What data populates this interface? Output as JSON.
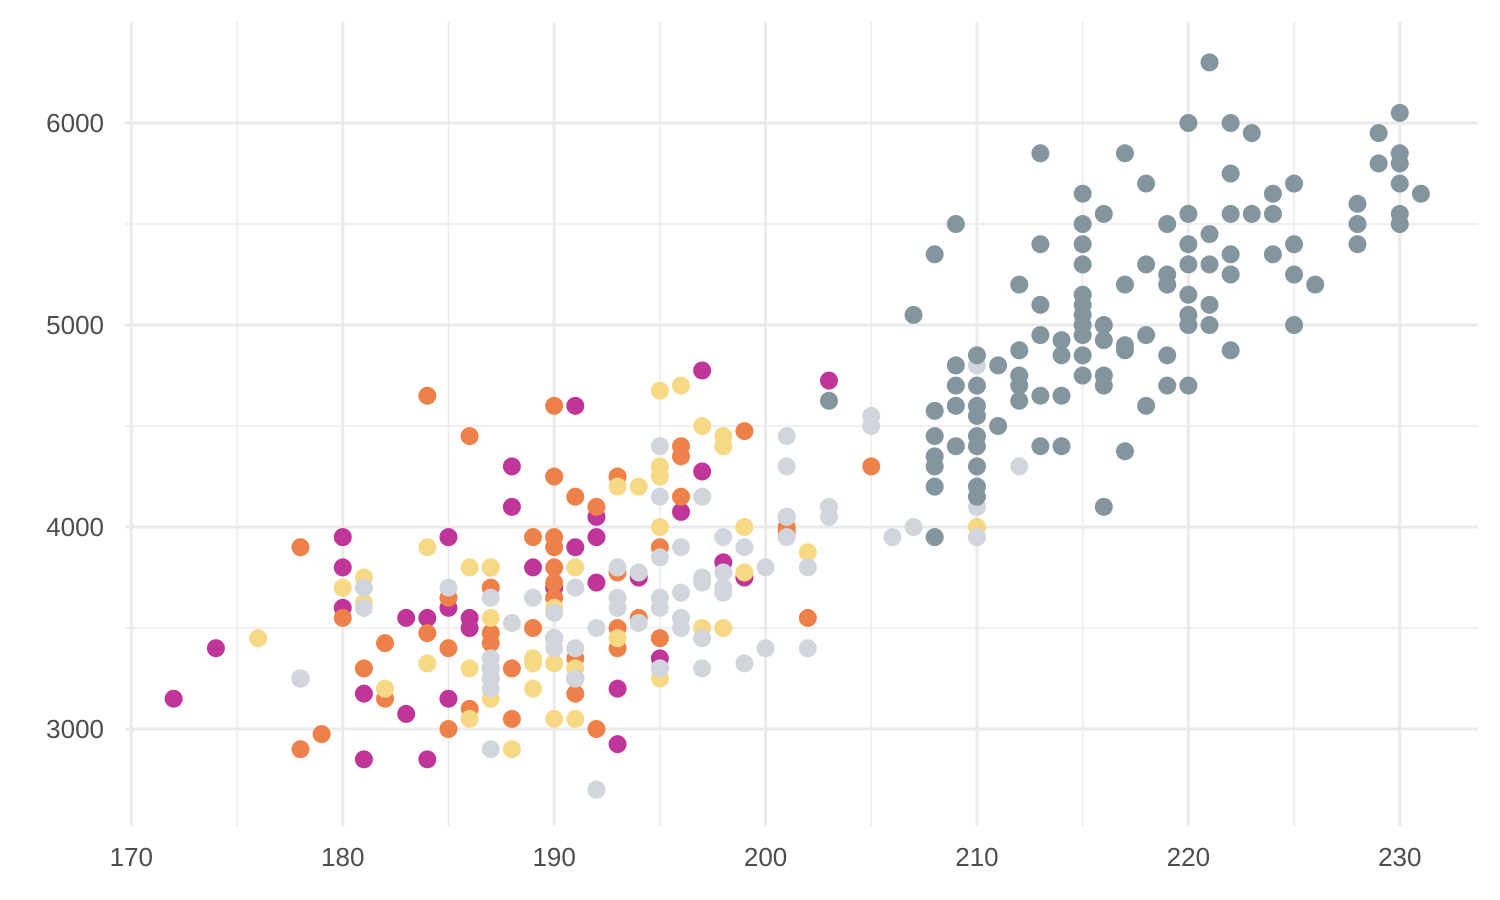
{
  "chart_data": {
    "type": "scatter",
    "title": "",
    "xlabel": "",
    "ylabel": "",
    "xlim": [
      169.7,
      233.7
    ],
    "ylim": [
      2520,
      6500
    ],
    "x_ticks": [
      170,
      180,
      190,
      200,
      210,
      220,
      230
    ],
    "x_tick_labels": [
      "170",
      "180",
      "190",
      "200",
      "210",
      "220",
      "230"
    ],
    "x_minor_ticks": [
      175,
      185,
      195,
      205,
      215,
      225
    ],
    "y_ticks": [
      3000,
      4000,
      5000,
      6000
    ],
    "y_tick_labels": [
      "3000",
      "4000",
      "5000",
      "6000"
    ],
    "y_minor_ticks": [
      3500,
      4500,
      5500
    ],
    "grid": true,
    "legend": "none",
    "series": [
      {
        "color": "#C0359A",
        "points": [
          [
            172,
            3150
          ],
          [
            174,
            3400
          ],
          [
            178,
            3250
          ],
          [
            180,
            3950
          ],
          [
            180,
            3800
          ],
          [
            180,
            3600
          ],
          [
            181,
            3175
          ],
          [
            181,
            2850
          ],
          [
            183,
            3550
          ],
          [
            183,
            3075
          ],
          [
            184,
            3550
          ],
          [
            184,
            2850
          ],
          [
            185,
            3950
          ],
          [
            185,
            3600
          ],
          [
            185,
            3150
          ],
          [
            186,
            3550
          ],
          [
            186,
            3500
          ],
          [
            187,
            3300
          ],
          [
            188,
            4300
          ],
          [
            188,
            4100
          ],
          [
            189,
            3800
          ],
          [
            190,
            3700
          ],
          [
            190,
            3450
          ],
          [
            191,
            4600
          ],
          [
            191,
            3900
          ],
          [
            191,
            3250
          ],
          [
            192,
            4050
          ],
          [
            192,
            3950
          ],
          [
            192,
            3725
          ],
          [
            193,
            3200
          ],
          [
            193,
            2925
          ],
          [
            194,
            3750
          ],
          [
            195,
            3350
          ],
          [
            195,
            3300
          ],
          [
            196,
            4075
          ],
          [
            197,
            4775
          ],
          [
            197,
            4275
          ],
          [
            198,
            3825
          ],
          [
            199,
            3750
          ],
          [
            201,
            4050
          ],
          [
            203,
            4725
          ]
        ]
      },
      {
        "color": "#EE8149",
        "points": [
          [
            178,
            3900
          ],
          [
            178,
            2900
          ],
          [
            179,
            2975
          ],
          [
            180,
            3550
          ],
          [
            181,
            3300
          ],
          [
            182,
            3425
          ],
          [
            182,
            3150
          ],
          [
            184,
            4650
          ],
          [
            184,
            3475
          ],
          [
            185,
            3650
          ],
          [
            185,
            3400
          ],
          [
            185,
            3000
          ],
          [
            186,
            4450
          ],
          [
            186,
            3100
          ],
          [
            187,
            3800
          ],
          [
            187,
            3700
          ],
          [
            187,
            3475
          ],
          [
            187,
            3425
          ],
          [
            187,
            3250
          ],
          [
            188,
            3300
          ],
          [
            188,
            3050
          ],
          [
            189,
            3950
          ],
          [
            189,
            3500
          ],
          [
            190,
            4600
          ],
          [
            190,
            4250
          ],
          [
            190,
            3950
          ],
          [
            190,
            3900
          ],
          [
            190,
            3800
          ],
          [
            190,
            3725
          ],
          [
            190,
            3650
          ],
          [
            191,
            4150
          ],
          [
            191,
            3350
          ],
          [
            191,
            3175
          ],
          [
            192,
            4100
          ],
          [
            192,
            3000
          ],
          [
            193,
            4250
          ],
          [
            193,
            3775
          ],
          [
            193,
            3500
          ],
          [
            193,
            3400
          ],
          [
            194,
            3550
          ],
          [
            195,
            3900
          ],
          [
            195,
            3450
          ],
          [
            196,
            4400
          ],
          [
            196,
            4350
          ],
          [
            196,
            4150
          ],
          [
            199,
            4475
          ],
          [
            201,
            4000
          ],
          [
            201,
            3975
          ],
          [
            202,
            3550
          ],
          [
            205,
            4300
          ]
        ]
      },
      {
        "color": "#F7D985",
        "points": [
          [
            176,
            3450
          ],
          [
            180,
            3700
          ],
          [
            181,
            3750
          ],
          [
            181,
            3625
          ],
          [
            182,
            3200
          ],
          [
            184,
            3900
          ],
          [
            184,
            3325
          ],
          [
            186,
            3800
          ],
          [
            186,
            3300
          ],
          [
            186,
            3050
          ],
          [
            187,
            3800
          ],
          [
            187,
            3550
          ],
          [
            187,
            3150
          ],
          [
            188,
            2900
          ],
          [
            189,
            3350
          ],
          [
            189,
            3325
          ],
          [
            189,
            3200
          ],
          [
            190,
            3600
          ],
          [
            190,
            3325
          ],
          [
            190,
            3050
          ],
          [
            191,
            3800
          ],
          [
            191,
            3300
          ],
          [
            191,
            3050
          ],
          [
            193,
            4200
          ],
          [
            193,
            3800
          ],
          [
            193,
            3450
          ],
          [
            194,
            4200
          ],
          [
            195,
            4675
          ],
          [
            195,
            4300
          ],
          [
            195,
            4250
          ],
          [
            195,
            4000
          ],
          [
            195,
            3250
          ],
          [
            196,
            4700
          ],
          [
            197,
            4500
          ],
          [
            197,
            3500
          ],
          [
            198,
            4450
          ],
          [
            198,
            4400
          ],
          [
            198,
            3500
          ],
          [
            199,
            4000
          ],
          [
            199,
            3775
          ],
          [
            202,
            3875
          ],
          [
            210,
            4000
          ]
        ]
      },
      {
        "color": "#D1D6DC",
        "points": [
          [
            178,
            3250
          ],
          [
            181,
            3700
          ],
          [
            181,
            3600
          ],
          [
            185,
            3700
          ],
          [
            187,
            3650
          ],
          [
            187,
            3350
          ],
          [
            187,
            3300
          ],
          [
            187,
            3250
          ],
          [
            187,
            3200
          ],
          [
            187,
            2900
          ],
          [
            188,
            3525
          ],
          [
            189,
            3650
          ],
          [
            190,
            3575
          ],
          [
            190,
            3450
          ],
          [
            190,
            3400
          ],
          [
            191,
            3700
          ],
          [
            191,
            3400
          ],
          [
            191,
            3250
          ],
          [
            192,
            3500
          ],
          [
            192,
            2700
          ],
          [
            193,
            3800
          ],
          [
            193,
            3650
          ],
          [
            193,
            3600
          ],
          [
            194,
            3775
          ],
          [
            194,
            3525
          ],
          [
            195,
            4400
          ],
          [
            195,
            4150
          ],
          [
            195,
            3850
          ],
          [
            195,
            3650
          ],
          [
            195,
            3600
          ],
          [
            195,
            3300
          ],
          [
            196,
            3900
          ],
          [
            196,
            3675
          ],
          [
            196,
            3550
          ],
          [
            196,
            3500
          ],
          [
            197,
            4150
          ],
          [
            197,
            3750
          ],
          [
            197,
            3725
          ],
          [
            197,
            3450
          ],
          [
            197,
            3300
          ],
          [
            198,
            3950
          ],
          [
            198,
            3775
          ],
          [
            198,
            3700
          ],
          [
            198,
            3675
          ],
          [
            199,
            3900
          ],
          [
            199,
            3325
          ],
          [
            200,
            3800
          ],
          [
            200,
            3400
          ],
          [
            201,
            4450
          ],
          [
            201,
            4300
          ],
          [
            201,
            4050
          ],
          [
            201,
            3950
          ],
          [
            202,
            3800
          ],
          [
            202,
            3400
          ],
          [
            203,
            4100
          ],
          [
            203,
            4050
          ],
          [
            205,
            4550
          ],
          [
            205,
            4500
          ],
          [
            206,
            3950
          ],
          [
            207,
            4000
          ],
          [
            210,
            4800
          ],
          [
            210,
            4100
          ],
          [
            210,
            3950
          ],
          [
            212,
            4300
          ]
        ]
      },
      {
        "color": "#83969F",
        "points": [
          [
            203,
            4625
          ],
          [
            207,
            5050
          ],
          [
            208,
            5350
          ],
          [
            208,
            4575
          ],
          [
            208,
            4450
          ],
          [
            208,
            4350
          ],
          [
            208,
            4300
          ],
          [
            208,
            4200
          ],
          [
            208,
            3950
          ],
          [
            209,
            5500
          ],
          [
            209,
            4800
          ],
          [
            209,
            4700
          ],
          [
            209,
            4600
          ],
          [
            209,
            4400
          ],
          [
            210,
            4850
          ],
          [
            210,
            4700
          ],
          [
            210,
            4600
          ],
          [
            210,
            4550
          ],
          [
            210,
            4450
          ],
          [
            210,
            4400
          ],
          [
            210,
            4300
          ],
          [
            210,
            4200
          ],
          [
            210,
            4150
          ],
          [
            211,
            4800
          ],
          [
            211,
            4500
          ],
          [
            212,
            5200
          ],
          [
            212,
            4875
          ],
          [
            212,
            4750
          ],
          [
            212,
            4700
          ],
          [
            212,
            4625
          ],
          [
            213,
            5850
          ],
          [
            213,
            5400
          ],
          [
            213,
            5100
          ],
          [
            213,
            4950
          ],
          [
            213,
            4650
          ],
          [
            213,
            4400
          ],
          [
            214,
            4925
          ],
          [
            214,
            4850
          ],
          [
            214,
            4650
          ],
          [
            214,
            4400
          ],
          [
            215,
            5650
          ],
          [
            215,
            5500
          ],
          [
            215,
            5400
          ],
          [
            215,
            5300
          ],
          [
            215,
            5150
          ],
          [
            215,
            5100
          ],
          [
            215,
            5050
          ],
          [
            215,
            5000
          ],
          [
            215,
            4950
          ],
          [
            215,
            4850
          ],
          [
            215,
            4750
          ],
          [
            216,
            5550
          ],
          [
            216,
            5000
          ],
          [
            216,
            4925
          ],
          [
            216,
            4750
          ],
          [
            216,
            4700
          ],
          [
            216,
            4100
          ],
          [
            217,
            5850
          ],
          [
            217,
            5200
          ],
          [
            217,
            4900
          ],
          [
            217,
            4875
          ],
          [
            217,
            4375
          ],
          [
            218,
            5700
          ],
          [
            218,
            5300
          ],
          [
            218,
            4950
          ],
          [
            218,
            4600
          ],
          [
            219,
            5500
          ],
          [
            219,
            5250
          ],
          [
            219,
            5200
          ],
          [
            219,
            4850
          ],
          [
            219,
            4700
          ],
          [
            220,
            6000
          ],
          [
            220,
            5550
          ],
          [
            220,
            5400
          ],
          [
            220,
            5300
          ],
          [
            220,
            5150
          ],
          [
            220,
            5050
          ],
          [
            220,
            5000
          ],
          [
            220,
            4700
          ],
          [
            221,
            6300
          ],
          [
            221,
            5450
          ],
          [
            221,
            5300
          ],
          [
            221,
            5100
          ],
          [
            221,
            5000
          ],
          [
            222,
            6000
          ],
          [
            222,
            5750
          ],
          [
            222,
            5550
          ],
          [
            222,
            5350
          ],
          [
            222,
            5250
          ],
          [
            222,
            4875
          ],
          [
            223,
            5950
          ],
          [
            223,
            5550
          ],
          [
            224,
            5650
          ],
          [
            224,
            5550
          ],
          [
            224,
            5350
          ],
          [
            225,
            5700
          ],
          [
            225,
            5400
          ],
          [
            225,
            5250
          ],
          [
            225,
            5000
          ],
          [
            226,
            5200
          ],
          [
            228,
            5600
          ],
          [
            228,
            5500
          ],
          [
            228,
            5400
          ],
          [
            229,
            5950
          ],
          [
            229,
            5800
          ],
          [
            230,
            6050
          ],
          [
            230,
            5850
          ],
          [
            230,
            5800
          ],
          [
            230,
            5700
          ],
          [
            230,
            5550
          ],
          [
            230,
            5500
          ],
          [
            231,
            5650
          ]
        ]
      }
    ]
  }
}
